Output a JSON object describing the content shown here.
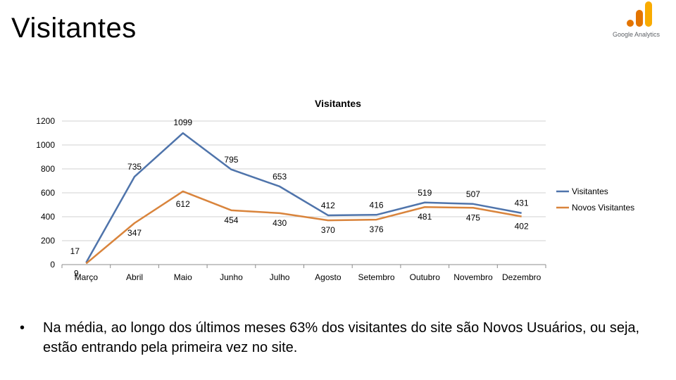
{
  "slide": {
    "title": "Visitantes",
    "logo_text": "Google Analytics",
    "bullet": "Na média, ao longo dos últimos meses 63% dos visitantes do site são Novos Usuários, ou seja, estão entrando pela primeira vez no site."
  },
  "colors": {
    "visitantes": "#4f74ab",
    "novos": "#d9843c",
    "grid": "#d0d0d0",
    "ga_dark": "#e37400",
    "ga_light": "#f9ab00"
  },
  "chart_data": {
    "type": "line",
    "title": "Visitantes",
    "categories": [
      "Março",
      "Abril",
      "Maio",
      "Junho",
      "Julho",
      "Agosto",
      "Setembro",
      "Outubro",
      "Novembro",
      "Dezembro"
    ],
    "series": [
      {
        "name": "Visitantes",
        "values": [
          17,
          735,
          1099,
          795,
          653,
          412,
          416,
          519,
          507,
          431
        ]
      },
      {
        "name": "Novos Visitantes",
        "values": [
          9,
          347,
          612,
          454,
          430,
          370,
          376,
          481,
          475,
          402
        ]
      }
    ],
    "ylim": [
      0,
      1200
    ],
    "yticks": [
      0,
      200,
      400,
      600,
      800,
      1000,
      1200
    ],
    "grid": true,
    "legend": "right"
  }
}
